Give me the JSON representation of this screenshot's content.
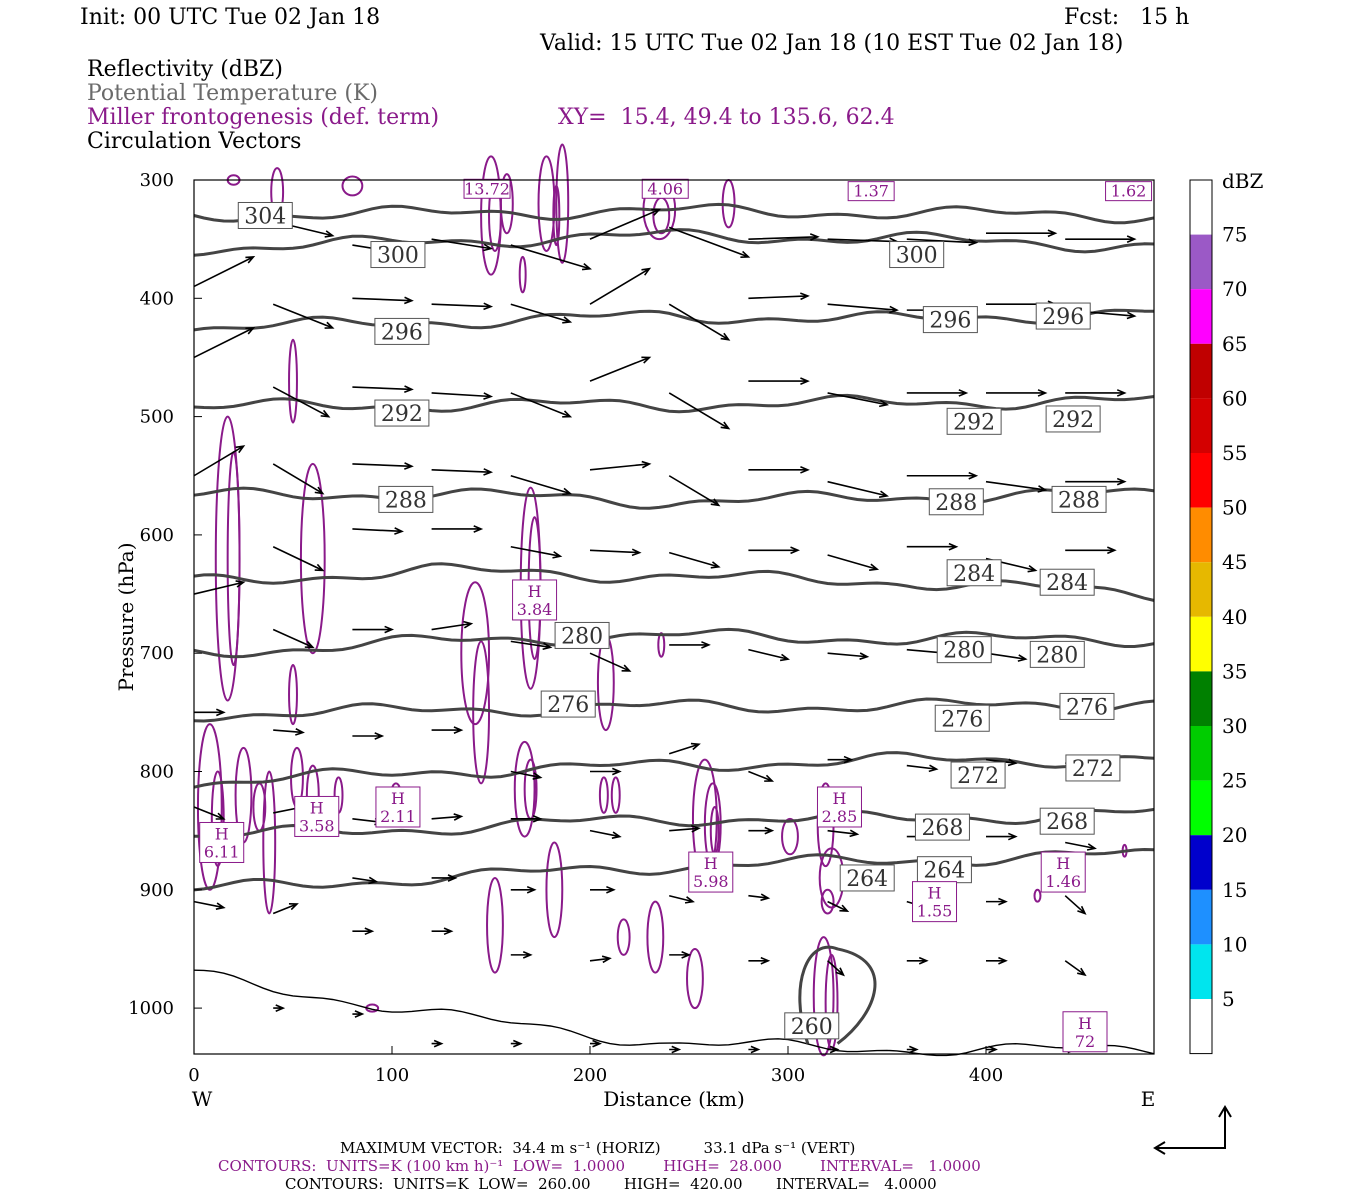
{
  "header": {
    "init": "Init: 00 UTC Tue 02 Jan 18",
    "fcst": "Fcst:   15 h",
    "valid": "Valid: 15 UTC Tue 02 Jan 18 (10 EST Tue 02 Jan 18)",
    "field1": "Reflectivity (dBZ)",
    "field2": "Potential Temperature (K)",
    "field3": "Miller frontogenesis (def. term)",
    "xy": "XY=  15.4, 49.4 to 135.6, 62.4",
    "field4": "Circulation Vectors"
  },
  "colors": {
    "theta": "#444444",
    "fronto": "#8a1a8a",
    "vector": "#000000"
  },
  "chart_data": {
    "type": "line",
    "xlabel": "Distance (km)",
    "ylabel": "Pressure (hPa)",
    "xlim": [
      0,
      485
    ],
    "ylim_hpa": [
      1040,
      300
    ],
    "x_ticks": [
      0,
      100,
      200,
      300,
      400
    ],
    "y_ticks": [
      300,
      400,
      500,
      600,
      700,
      800,
      900,
      1000
    ],
    "left_end_label": "W",
    "right_end_label": "E",
    "theta_isentropes": [
      {
        "value": "304",
        "levels": [
          330,
          328,
          326,
          328,
          330
        ]
      },
      {
        "value": "300",
        "levels": [
          358,
          352,
          347,
          350,
          356
        ]
      },
      {
        "value": "296",
        "levels": [
          425,
          420,
          415,
          418,
          412
        ]
      },
      {
        "value": "292",
        "levels": [
          492,
          490,
          490,
          488,
          487
        ]
      },
      {
        "value": "288",
        "levels": [
          567,
          565,
          572,
          568,
          565
        ]
      },
      {
        "value": "284",
        "levels": [
          640,
          630,
          635,
          640,
          650
        ]
      },
      {
        "value": "280",
        "levels": [
          700,
          690,
          685,
          688,
          688
        ]
      },
      {
        "value": "276",
        "levels": [
          752,
          748,
          745,
          745,
          742
        ]
      },
      {
        "value": "272",
        "levels": [
          810,
          800,
          795,
          790,
          790
        ]
      },
      {
        "value": "268",
        "levels": [
          855,
          848,
          840,
          840,
          835
        ]
      },
      {
        "value": "264",
        "levels": [
          900,
          890,
          880,
          875,
          870
        ]
      },
      {
        "value": "260",
        "levels": [
          972,
          1005,
          1030,
          1035,
          1035
        ]
      }
    ],
    "theta_labels": [
      {
        "text": "304",
        "x": 36,
        "p": 330
      },
      {
        "text": "300",
        "x": 103,
        "p": 363
      },
      {
        "text": "300",
        "x": 365,
        "p": 363
      },
      {
        "text": "296",
        "x": 105,
        "p": 428
      },
      {
        "text": "296",
        "x": 382,
        "p": 418
      },
      {
        "text": "296",
        "x": 439,
        "p": 415
      },
      {
        "text": "292",
        "x": 105,
        "p": 497
      },
      {
        "text": "292",
        "x": 394,
        "p": 504
      },
      {
        "text": "292",
        "x": 444,
        "p": 502
      },
      {
        "text": "288",
        "x": 107,
        "p": 570
      },
      {
        "text": "288",
        "x": 385,
        "p": 572
      },
      {
        "text": "288",
        "x": 447,
        "p": 570
      },
      {
        "text": "284",
        "x": 394,
        "p": 632
      },
      {
        "text": "284",
        "x": 441,
        "p": 640
      },
      {
        "text": "280",
        "x": 196,
        "p": 685
      },
      {
        "text": "280",
        "x": 389,
        "p": 697
      },
      {
        "text": "280",
        "x": 436,
        "p": 701
      },
      {
        "text": "276",
        "x": 189,
        "p": 743
      },
      {
        "text": "276",
        "x": 388,
        "p": 755
      },
      {
        "text": "276",
        "x": 451,
        "p": 745
      },
      {
        "text": "272",
        "x": 396,
        "p": 803
      },
      {
        "text": "272",
        "x": 454,
        "p": 797
      },
      {
        "text": "268",
        "x": 378,
        "p": 847
      },
      {
        "text": "268",
        "x": 441,
        "p": 842
      },
      {
        "text": "264",
        "x": 340,
        "p": 890
      },
      {
        "text": "264",
        "x": 379,
        "p": 883
      },
      {
        "text": "260",
        "x": 312,
        "p": 1015
      }
    ],
    "fronto_labels": [
      {
        "text": "13.72",
        "x": 148,
        "p": 307
      },
      {
        "text": "4.06",
        "x": 238,
        "p": 307
      },
      {
        "text": "1.37",
        "x": 342,
        "p": 309
      },
      {
        "text": "1.62",
        "x": 472,
        "p": 309
      }
    ],
    "fronto_highs": [
      {
        "label": "H",
        "value": "3.84",
        "x": 172,
        "p": 655
      },
      {
        "label": "H",
        "value": "2.11",
        "x": 103,
        "p": 830
      },
      {
        "label": "H",
        "value": "3.58",
        "x": 62,
        "p": 838
      },
      {
        "label": "H",
        "value": "6.11",
        "x": 14,
        "p": 860
      },
      {
        "label": "H",
        "value": "5.98",
        "x": 261,
        "p": 885
      },
      {
        "label": "H",
        "value": "2.85",
        "x": 326,
        "p": 830
      },
      {
        "label": "H",
        "value": "1.55",
        "x": 374,
        "p": 910
      },
      {
        "label": "H",
        "value": "1.46",
        "x": 439,
        "p": 885
      },
      {
        "label": "H",
        "value": "72",
        "x": 450,
        "p": 1020
      }
    ],
    "legend": {
      "title": "dBZ",
      "ticks": [
        "75",
        "70",
        "65",
        "60",
        "55",
        "50",
        "45",
        "40",
        "35",
        "30",
        "25",
        "20",
        "15",
        "10",
        "5"
      ],
      "colors": [
        "#ffffff",
        "#9b59c6",
        "#ff00ff",
        "#c00000",
        "#d40000",
        "#ff0000",
        "#ff8c00",
        "#e6b800",
        "#ffff00",
        "#008000",
        "#00cc00",
        "#00ff00",
        "#0000cc",
        "#1e90ff",
        "#00e5ee",
        "#ffffff"
      ]
    }
  },
  "footer": {
    "max_vector": "MAXIMUM VECTOR:  34.4 m s⁻¹ (HORIZ)         33.1 dPa s⁻¹ (VERT)",
    "contours1": "CONTOURS:  UNITS=K (100 km h)⁻¹  LOW=  1.0000        HIGH=  28.000        INTERVAL=   1.0000",
    "contours2": "CONTOURS:  UNITS=K  LOW=  260.00       HIGH=  420.00       INTERVAL=   4.0000"
  }
}
